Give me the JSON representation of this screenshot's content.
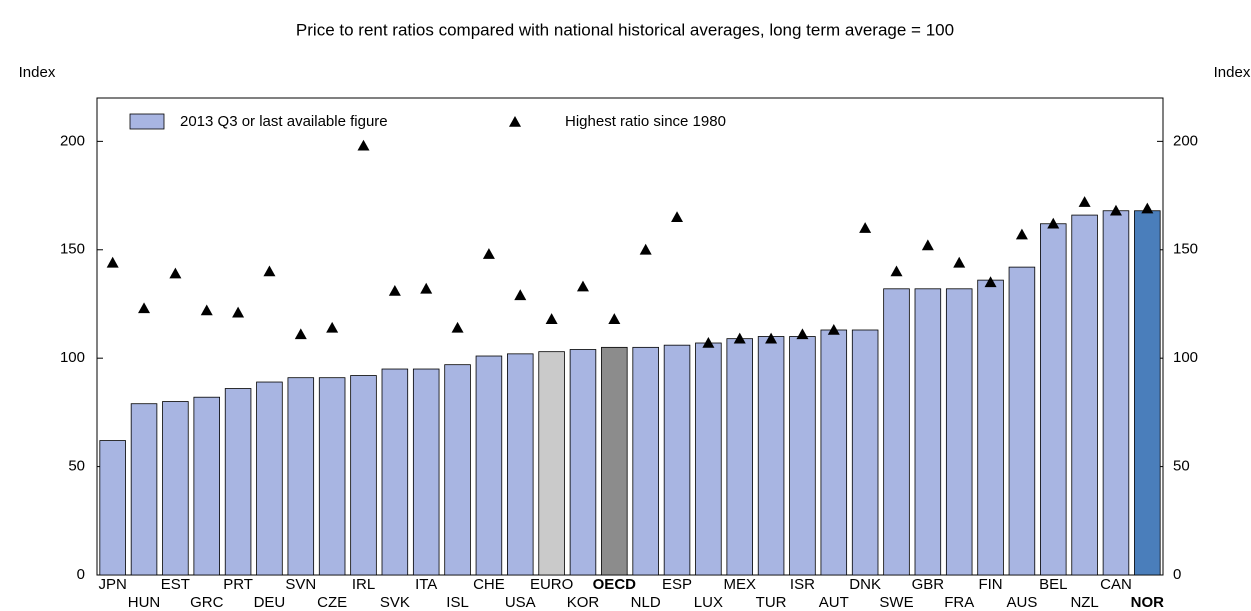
{
  "chart_data": {
    "type": "bar",
    "title": "Price to rent ratios compared with national historical averages, long term average = 100",
    "y_label": "Index",
    "y2_label": "Index",
    "categories": [
      "JPN",
      "HUN",
      "EST",
      "GRC",
      "PRT",
      "DEU",
      "SVN",
      "CZE",
      "IRL",
      "SVK",
      "ITA",
      "ISL",
      "CHE",
      "USA",
      "EURO",
      "KOR",
      "OECD",
      "NLD",
      "ESP",
      "LUX",
      "MEX",
      "TUR",
      "ISR",
      "AUT",
      "DNK",
      "SWE",
      "GBR",
      "FRA",
      "FIN",
      "AUS",
      "BEL",
      "NZL",
      "CAN",
      "NOR"
    ],
    "bold_categories": [
      "OECD",
      "NOR"
    ],
    "series": [
      {
        "name": "2013 Q3 or last available figure",
        "type": "bar",
        "color": "#a8b5e2",
        "colors": [
          "#a8b5e2",
          "#a8b5e2",
          "#a8b5e2",
          "#a8b5e2",
          "#a8b5e2",
          "#a8b5e2",
          "#a8b5e2",
          "#a8b5e2",
          "#a8b5e2",
          "#a8b5e2",
          "#a8b5e2",
          "#a8b5e2",
          "#a8b5e2",
          "#a8b5e2",
          "#cacaca",
          "#a8b5e2",
          "#8c8c8c",
          "#a8b5e2",
          "#a8b5e2",
          "#a8b5e2",
          "#a8b5e2",
          "#a8b5e2",
          "#a8b5e2",
          "#a8b5e2",
          "#a8b5e2",
          "#a8b5e2",
          "#a8b5e2",
          "#a8b5e2",
          "#a8b5e2",
          "#a8b5e2",
          "#a8b5e2",
          "#a8b5e2",
          "#a8b5e2",
          "#4a7ebb"
        ],
        "values": [
          62,
          79,
          80,
          82,
          86,
          89,
          91,
          91,
          92,
          95,
          95,
          97,
          101,
          102,
          103,
          104,
          105,
          105,
          106,
          107,
          109,
          110,
          110,
          113,
          113,
          132,
          132,
          132,
          136,
          142,
          162,
          166,
          168,
          168
        ]
      },
      {
        "name": "Highest ratio since 1980",
        "type": "marker",
        "color": "#000000",
        "values": [
          144,
          123,
          139,
          122,
          121,
          140,
          111,
          114,
          198,
          131,
          132,
          114,
          148,
          129,
          118,
          133,
          118,
          150,
          165,
          107,
          109,
          109,
          111,
          113,
          160,
          140,
          152,
          144,
          135,
          157,
          162,
          172,
          168,
          169
        ]
      }
    ],
    "ylim": [
      0,
      220
    ],
    "yticks": [
      0,
      50,
      100,
      150,
      200
    ],
    "y2lim": [
      0,
      220
    ],
    "y2ticks": [
      0,
      50,
      100,
      150,
      200
    ],
    "legend": "top-left"
  }
}
